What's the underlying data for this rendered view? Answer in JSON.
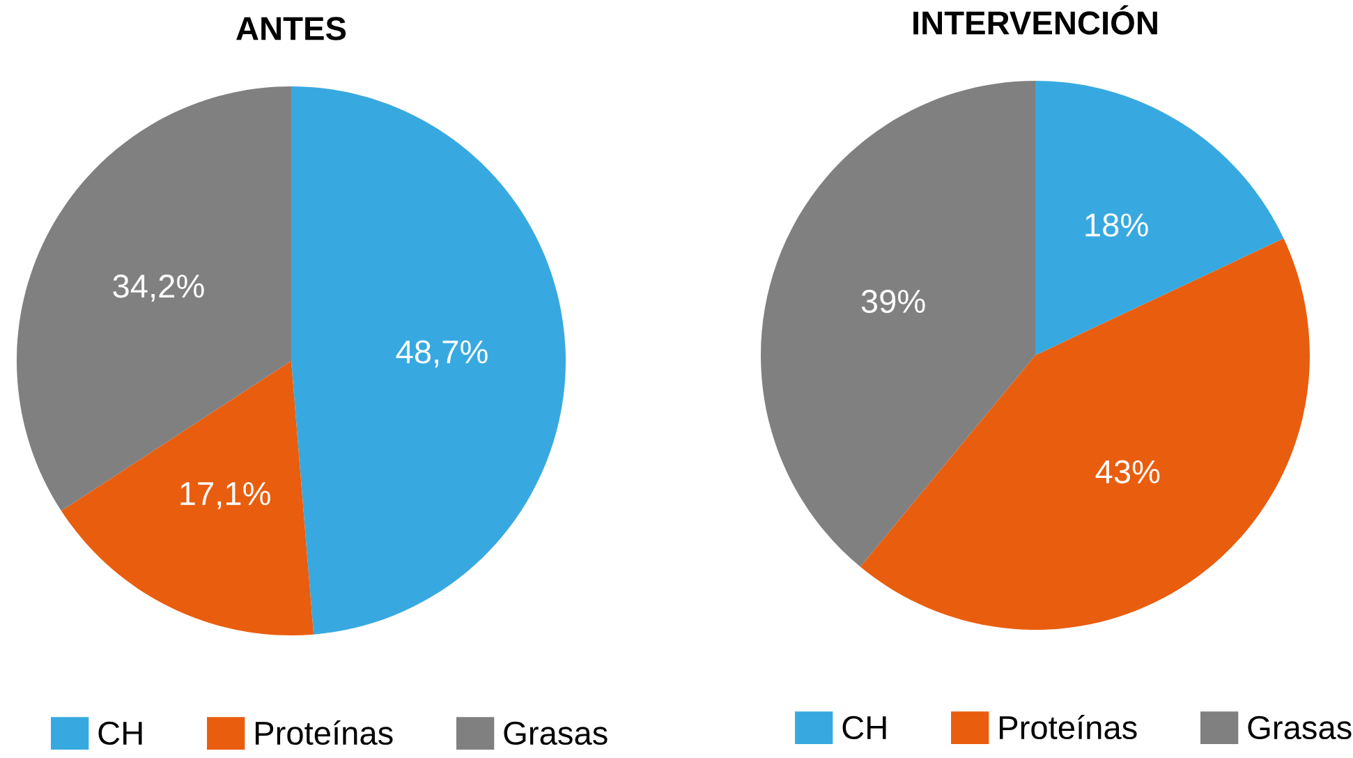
{
  "chart_data": [
    {
      "type": "pie",
      "title": "ANTES",
      "categories": [
        "CH",
        "Proteínas",
        "Grasas"
      ],
      "values": [
        48.7,
        17.1,
        34.2
      ],
      "value_labels": [
        "48,7%",
        "17,1%",
        "34,2%"
      ],
      "colors": [
        "#38a9e0",
        "#e95d0e",
        "#808080"
      ],
      "legend": "bottom"
    },
    {
      "type": "pie",
      "title": "INTERVENCIÓN",
      "categories": [
        "CH",
        "Proteínas",
        "Grasas"
      ],
      "values": [
        18,
        43,
        39
      ],
      "value_labels": [
        "18%",
        "43%",
        "39%"
      ],
      "colors": [
        "#38a9e0",
        "#e95d0e",
        "#808080"
      ],
      "legend": "bottom"
    }
  ]
}
